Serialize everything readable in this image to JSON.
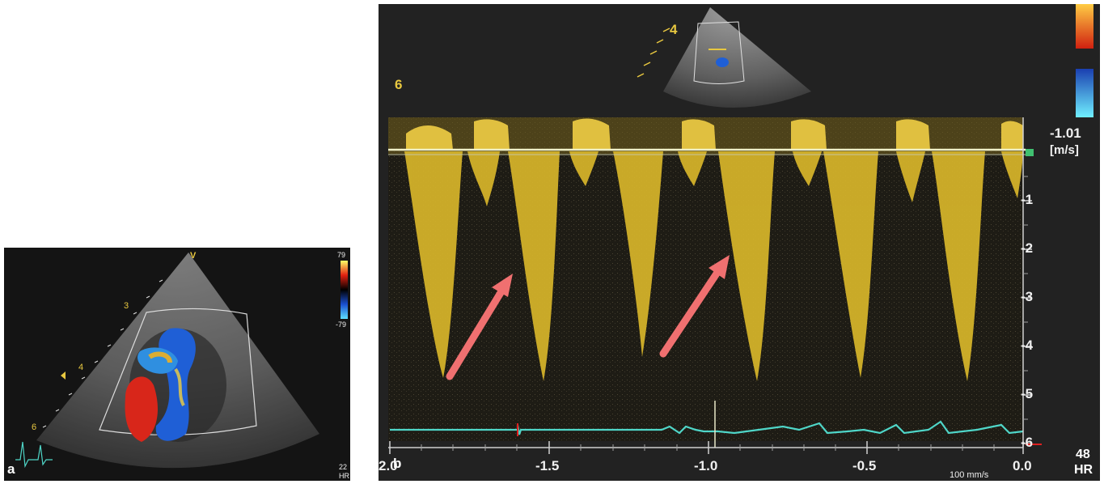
{
  "panel_a": {
    "label": "a",
    "color_bar_top": "79",
    "color_bar_bottom": "-79",
    "depth_marks": [
      "3",
      "4",
      "6"
    ],
    "probe_marker": "V",
    "corner_small_text": "22",
    "corner_small_text_2": "HR"
  },
  "panel_b": {
    "label": "b",
    "velocity_top": "-1.01",
    "velocity_unit": "[m/s]",
    "y_ticks": [
      "-1",
      "-2",
      "-3",
      "-4",
      "-5",
      "-6"
    ],
    "x_ticks": [
      "2.0",
      "-1.5",
      "-1.0",
      "-0.5",
      "0.0"
    ],
    "sweep_speed": "100 mm/s",
    "hr_value": "48",
    "hr_label": "HR",
    "depth_marks": [
      "4",
      "6"
    ]
  },
  "colors": {
    "doppler": "#d8b62a",
    "ecg": "#4fd6c8",
    "arrow": "#f07070",
    "flow_red": "#d8261a",
    "flow_blue": "#1f5fd6"
  }
}
